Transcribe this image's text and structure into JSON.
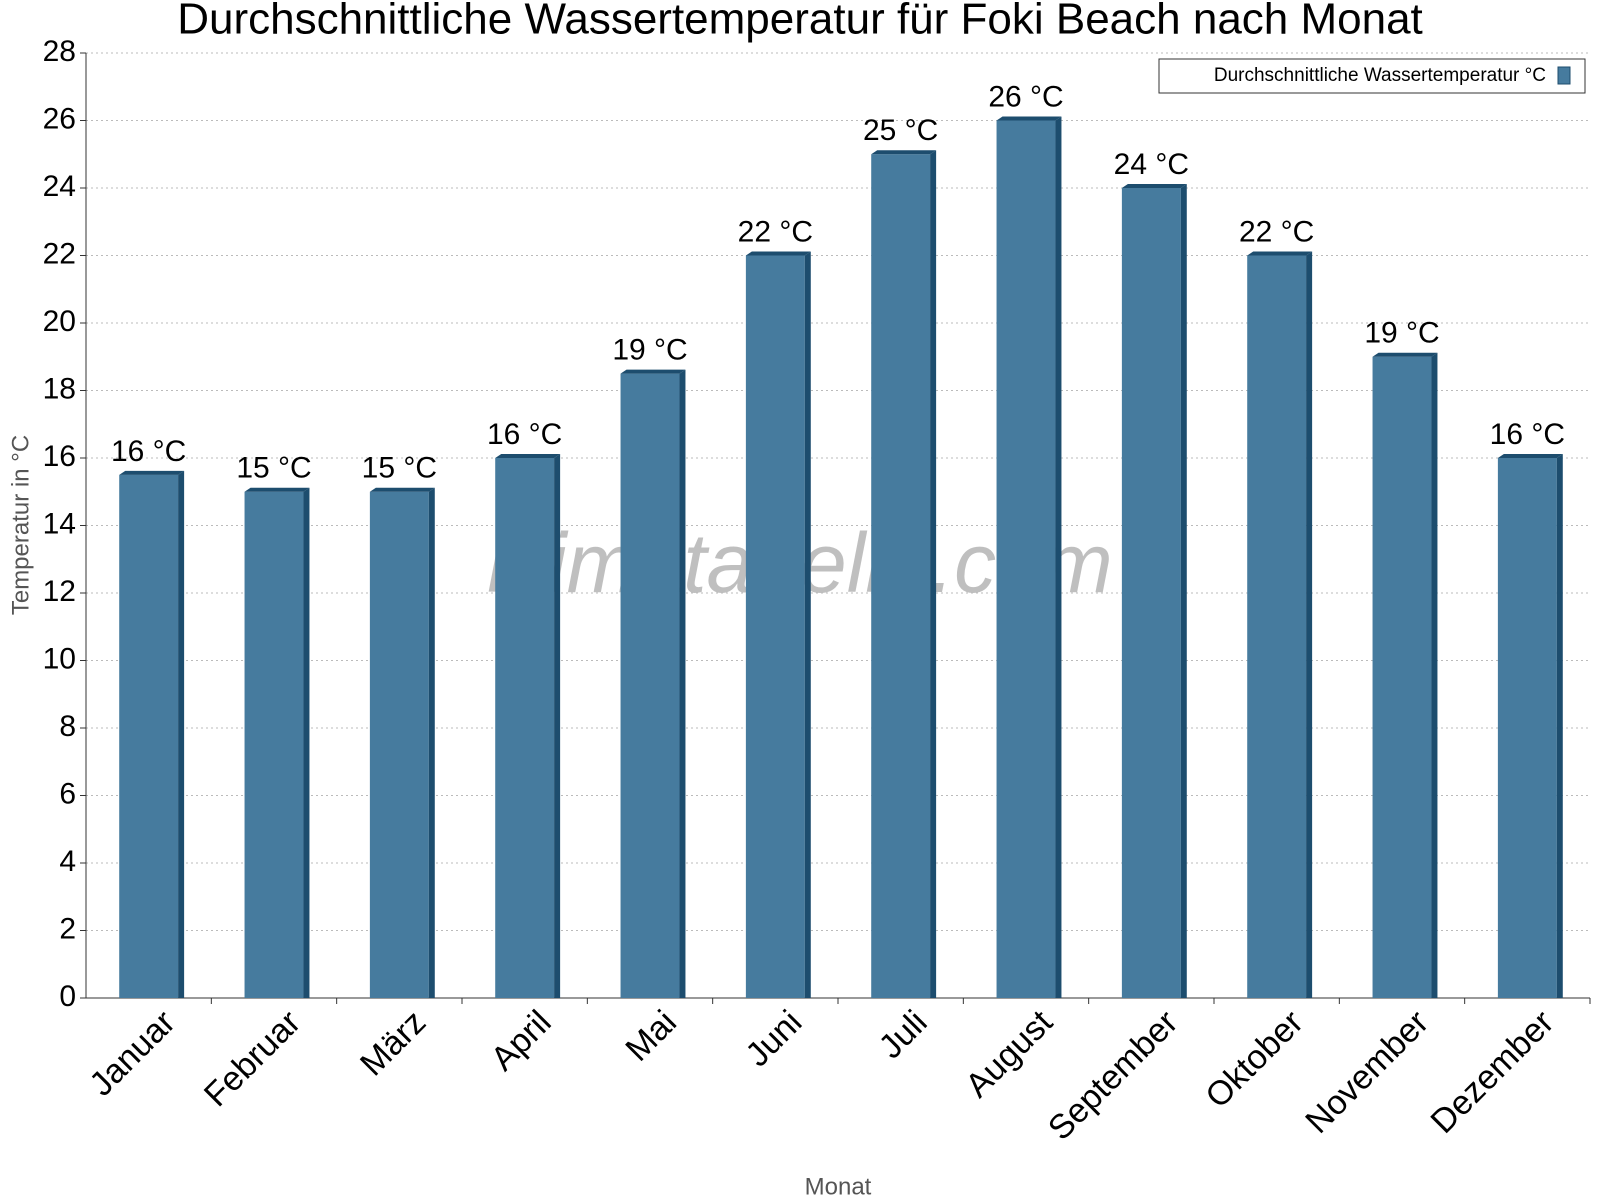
{
  "chart_data": {
    "type": "bar",
    "title": "Durchschnittliche Wassertemperatur für Foki Beach nach Monat",
    "x_label": "Monat",
    "y_label": "Temperatur in °C",
    "watermark": "klimatabelle.com",
    "categories": [
      "Januar",
      "Februar",
      "März",
      "April",
      "Mai",
      "Juni",
      "Juli",
      "August",
      "September",
      "Oktober",
      "November",
      "Dezember"
    ],
    "series": [
      {
        "name": "Durchschnittliche Wassertemperatur °C",
        "color": "#467b9e",
        "values": [
          15.5,
          15,
          15,
          16,
          18.5,
          22,
          25,
          26,
          24,
          22,
          19,
          16
        ],
        "value_labels": [
          "16 °C",
          "15 °C",
          "15 °C",
          "16 °C",
          "19 °C",
          "22 °C",
          "25 °C",
          "26 °C",
          "24 °C",
          "22 °C",
          "19 °C",
          "16 °C"
        ]
      }
    ],
    "ylim": [
      0,
      28
    ],
    "yticks": [
      0,
      2,
      4,
      6,
      8,
      10,
      12,
      14,
      16,
      18,
      20,
      22,
      24,
      26,
      28
    ],
    "grid": true,
    "legend": "top-right"
  }
}
